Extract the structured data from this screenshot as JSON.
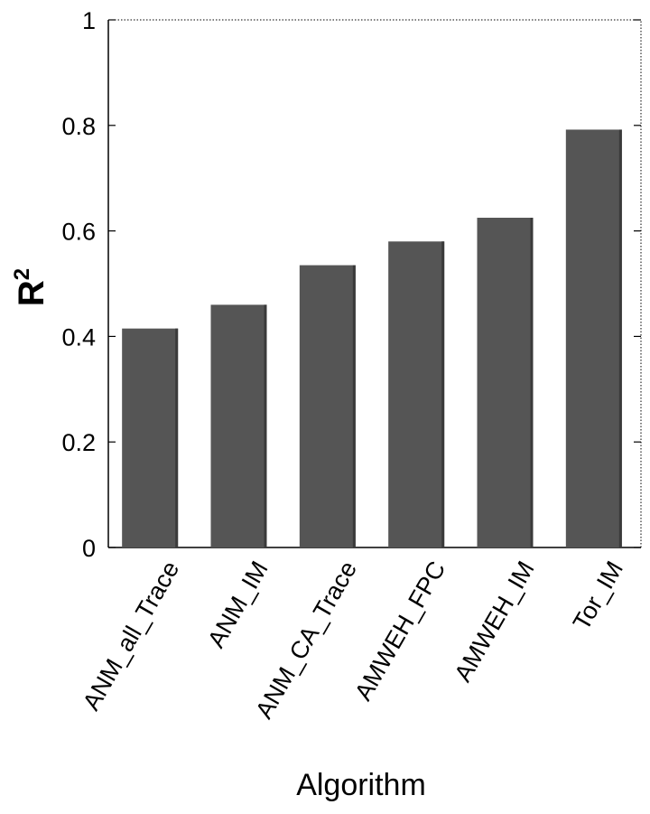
{
  "chart_data": {
    "type": "bar",
    "categories": [
      "ANM_all_Trace",
      "ANM_IM",
      "ANM_CA_Trace",
      "AMWEH_FPC",
      "AMWEH_IM",
      "Tor_IM"
    ],
    "values": [
      0.415,
      0.46,
      0.535,
      0.58,
      0.625,
      0.792
    ],
    "title": "",
    "xlabel": "Algorithm",
    "ylabel": "R",
    "ylabel_superscript": "2",
    "ylim": [
      0,
      1
    ],
    "yticks": [
      "0",
      "0.2",
      "0.4",
      "0.6",
      "0.8",
      "1"
    ],
    "grid": false,
    "legend": "none",
    "bar_color": "#555555"
  }
}
